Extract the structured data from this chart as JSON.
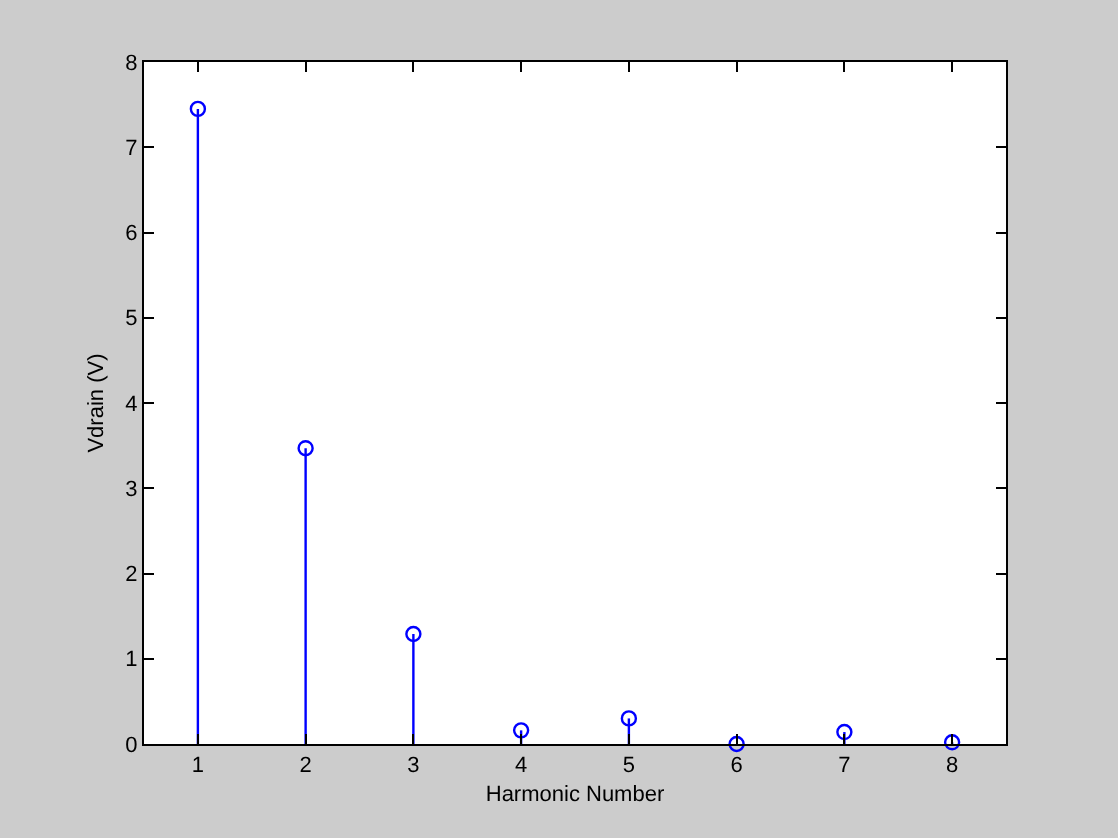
{
  "chart_data": {
    "type": "lollipop",
    "xlabel": "Harmonic Number",
    "ylabel": "Vdrain (V)",
    "x": [
      1,
      2,
      3,
      4,
      5,
      6,
      7,
      8
    ],
    "values": [
      7.45,
      3.47,
      1.29,
      0.16,
      0.3,
      0.0,
      0.14,
      0.02
    ],
    "color": "#0000ff",
    "marker": "circle",
    "xlim": [
      0.5,
      8.5
    ],
    "xticks": [
      1,
      2,
      3,
      4,
      5,
      6,
      7,
      8
    ],
    "ylim": [
      0,
      8
    ],
    "yticks": [
      0,
      1,
      2,
      3,
      4,
      5,
      6,
      7,
      8
    ]
  }
}
